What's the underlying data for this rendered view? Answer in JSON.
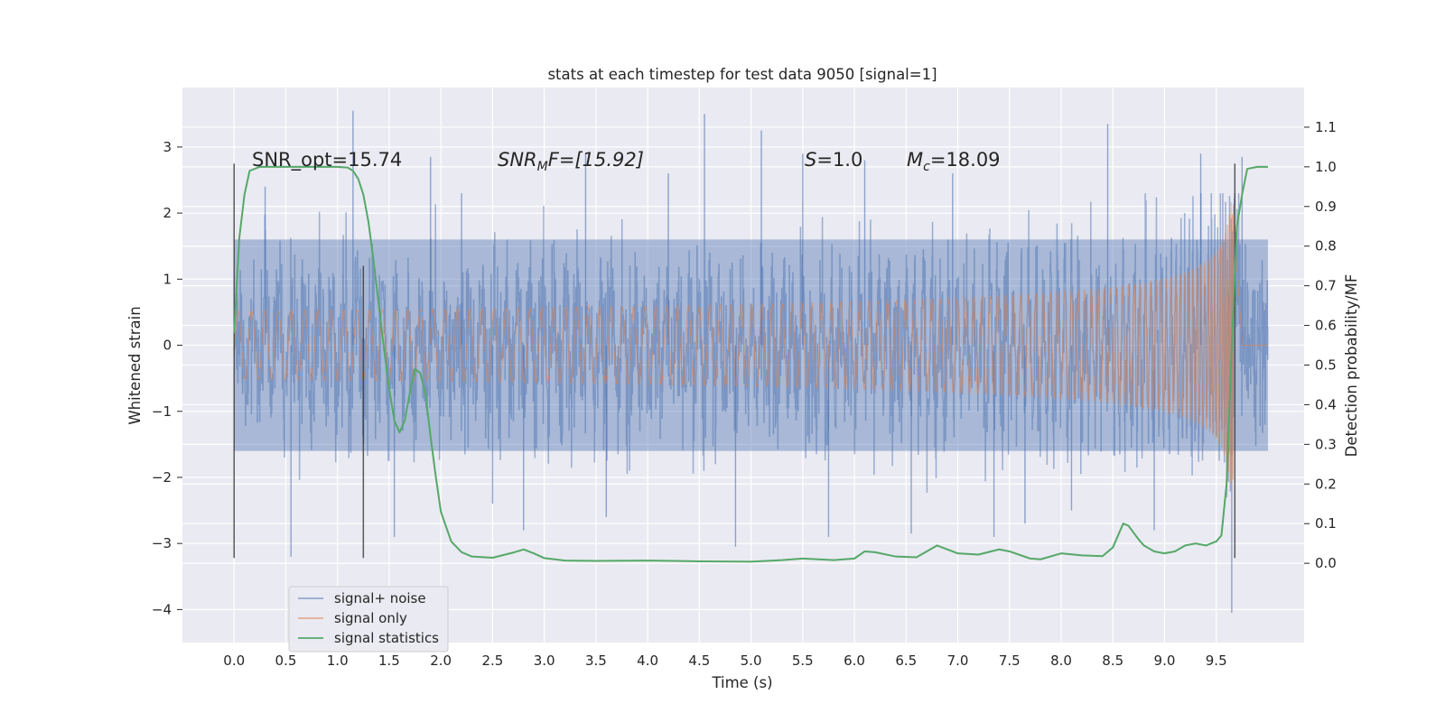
{
  "chart_data": {
    "type": "line",
    "title": "stats at each timestep for test data 9050 [signal=1]",
    "xlabel": "Time (s)",
    "ylabel": "Whitened strain",
    "y2label": "Detection probability/MF",
    "xlim": [
      -0.5,
      10.35
    ],
    "ylim": [
      -4.5,
      3.9
    ],
    "y2lim": [
      -0.2,
      1.2
    ],
    "x_ticks": [
      "0.0",
      "0.5",
      "1.0",
      "1.5",
      "2.0",
      "2.5",
      "3.0",
      "3.5",
      "4.0",
      "4.5",
      "5.0",
      "5.5",
      "6.0",
      "6.5",
      "7.0",
      "7.5",
      "8.0",
      "8.5",
      "9.0",
      "9.5"
    ],
    "y_ticks": [
      "3",
      "2",
      "1",
      "0",
      "−1",
      "−2",
      "−3",
      "−4"
    ],
    "y2_ticks": [
      "1.1",
      "1.0",
      "0.9",
      "0.8",
      "0.7",
      "0.6",
      "0.5",
      "0.4",
      "0.3",
      "0.2",
      "0.1",
      "0.0"
    ],
    "grid": true,
    "legend_placement": "lower-left",
    "annotations": {
      "snr_opt": "SNR_opt=15.74",
      "snr_mf_base": "SNR",
      "snr_mf_sub": "M",
      "snr_mf_rest": "F=[15.92]",
      "s_italic": "S",
      "s_rest": "=1.0",
      "mc_base": "M",
      "mc_sub": "c",
      "mc_rest": "=18.09"
    },
    "vertical_markers": [
      {
        "x": 0.0,
        "y_range": [
          -3.22,
          2.75
        ]
      },
      {
        "x": 1.25,
        "y_range": [
          -3.22,
          1.2
        ]
      },
      {
        "x": 9.68,
        "y_range": [
          -3.22,
          2.75
        ]
      }
    ],
    "series": [
      {
        "name": "signal+ noise",
        "color": "#4c72b0",
        "x_range": [
          0.0,
          10.0
        ],
        "envelope_core": 1.6,
        "spikes": [
          {
            "x": 0.3,
            "y": 2.4
          },
          {
            "x": 0.55,
            "y": -3.2
          },
          {
            "x": 1.15,
            "y": 3.55
          },
          {
            "x": 1.55,
            "y": -2.9
          },
          {
            "x": 1.9,
            "y": 2.85
          },
          {
            "x": 2.2,
            "y": 2.3
          },
          {
            "x": 2.5,
            "y": -2.4
          },
          {
            "x": 2.8,
            "y": -2.8
          },
          {
            "x": 3.4,
            "y": 2.9
          },
          {
            "x": 3.6,
            "y": -2.6
          },
          {
            "x": 4.2,
            "y": 2.6
          },
          {
            "x": 4.55,
            "y": 3.5
          },
          {
            "x": 4.85,
            "y": -3.05
          },
          {
            "x": 5.1,
            "y": 3.25
          },
          {
            "x": 5.5,
            "y": 2.9
          },
          {
            "x": 5.75,
            "y": -2.9
          },
          {
            "x": 6.1,
            "y": 2.8
          },
          {
            "x": 6.55,
            "y": -2.85
          },
          {
            "x": 6.95,
            "y": 2.6
          },
          {
            "x": 7.35,
            "y": -2.9
          },
          {
            "x": 7.65,
            "y": -2.7
          },
          {
            "x": 8.1,
            "y": -2.5
          },
          {
            "x": 8.45,
            "y": 3.35
          },
          {
            "x": 8.9,
            "y": -2.8
          },
          {
            "x": 9.35,
            "y": 2.9
          },
          {
            "x": 9.65,
            "y": -4.05
          },
          {
            "x": 9.75,
            "y": 2.85
          }
        ]
      },
      {
        "name": "signal only",
        "color": "#dd8452",
        "x_range": [
          0.0,
          10.0
        ],
        "peak_time": 9.67,
        "peak_amplitude": 2.2
      },
      {
        "name": "signal statistics",
        "color": "#55a868",
        "axis": "right",
        "x": [
          0.0,
          0.05,
          0.1,
          0.15,
          0.25,
          0.35,
          0.5,
          0.6,
          0.8,
          1.0,
          1.1,
          1.15,
          1.2,
          1.25,
          1.3,
          1.35,
          1.4,
          1.45,
          1.5,
          1.55,
          1.6,
          1.65,
          1.7,
          1.75,
          1.8,
          1.85,
          1.9,
          1.95,
          2.0,
          2.1,
          2.2,
          2.3,
          2.5,
          2.7,
          2.8,
          2.9,
          3.0,
          3.2,
          3.5,
          4.0,
          4.5,
          5.0,
          5.3,
          5.5,
          5.8,
          6.0,
          6.1,
          6.2,
          6.4,
          6.6,
          6.8,
          7.0,
          7.2,
          7.4,
          7.5,
          7.7,
          7.8,
          8.0,
          8.2,
          8.4,
          8.5,
          8.6,
          8.65,
          8.75,
          8.8,
          8.9,
          9.0,
          9.1,
          9.2,
          9.3,
          9.4,
          9.5,
          9.55,
          9.6,
          9.65,
          9.7,
          9.75,
          9.8,
          9.9,
          10.0
        ],
        "y": [
          0.58,
          0.82,
          0.93,
          0.99,
          1.0,
          1.0,
          1.0,
          1.0,
          1.0,
          1.0,
          0.998,
          0.99,
          0.97,
          0.93,
          0.86,
          0.76,
          0.65,
          0.54,
          0.44,
          0.36,
          0.33,
          0.36,
          0.43,
          0.49,
          0.48,
          0.43,
          0.32,
          0.22,
          0.13,
          0.055,
          0.028,
          0.017,
          0.014,
          0.027,
          0.035,
          0.025,
          0.013,
          0.007,
          0.006,
          0.007,
          0.005,
          0.004,
          0.008,
          0.012,
          0.008,
          0.012,
          0.03,
          0.028,
          0.017,
          0.015,
          0.045,
          0.025,
          0.022,
          0.035,
          0.03,
          0.012,
          0.01,
          0.025,
          0.02,
          0.018,
          0.04,
          0.1,
          0.095,
          0.06,
          0.045,
          0.03,
          0.025,
          0.03,
          0.045,
          0.05,
          0.045,
          0.055,
          0.07,
          0.2,
          0.55,
          0.85,
          0.93,
          0.995,
          1.0,
          1.0
        ]
      }
    ]
  }
}
